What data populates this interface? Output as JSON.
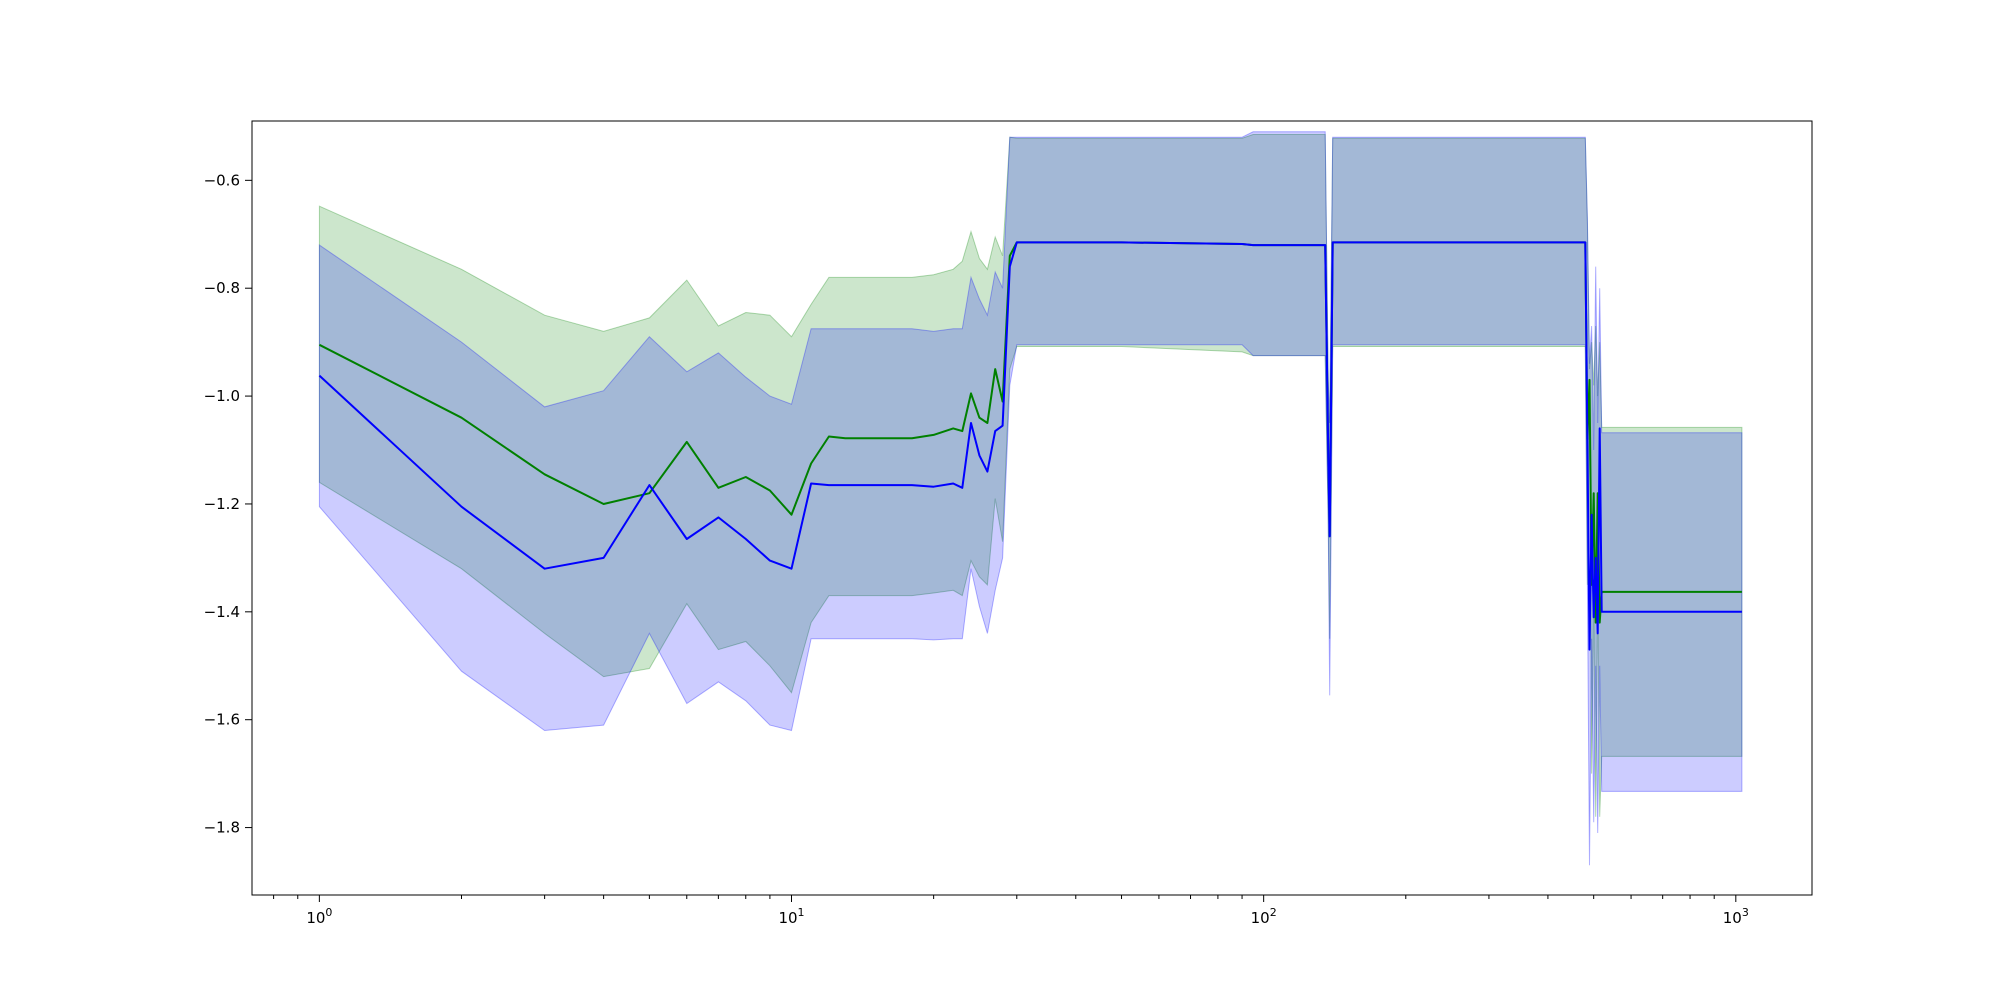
{
  "chart_data": {
    "type": "line",
    "xscale": "log",
    "xlim": [
      0.72,
      1450
    ],
    "ylim": [
      -1.925,
      -0.49
    ],
    "grid": false,
    "legend": "none",
    "x_ticks": [
      {
        "value": 1,
        "base": "10",
        "exp": "0"
      },
      {
        "value": 10,
        "base": "10",
        "exp": "1"
      },
      {
        "value": 100,
        "base": "10",
        "exp": "2"
      },
      {
        "value": 1000,
        "base": "10",
        "exp": "3"
      }
    ],
    "y_ticks": [
      {
        "value": -0.6,
        "label": "−0.6"
      },
      {
        "value": -0.8,
        "label": "−0.8"
      },
      {
        "value": -1.0,
        "label": "−1.0"
      },
      {
        "value": -1.2,
        "label": "−1.2"
      },
      {
        "value": -1.4,
        "label": "−1.4"
      },
      {
        "value": -1.6,
        "label": "−1.6"
      },
      {
        "value": -1.8,
        "label": "−1.8"
      }
    ],
    "series": [
      {
        "color": "#008000",
        "band_color": "#008000",
        "x": [
          1,
          2,
          3,
          4,
          5,
          6,
          7,
          8,
          9,
          10,
          11,
          12,
          13,
          18,
          20,
          22,
          23,
          24,
          25,
          26,
          27,
          28,
          29,
          30,
          50,
          90,
          95,
          135,
          137,
          138,
          140,
          200,
          480,
          485,
          490,
          495,
          500,
          505,
          510,
          515,
          520,
          1030
        ],
        "y": [
          -0.905,
          -1.04,
          -1.145,
          -1.2,
          -1.18,
          -1.085,
          -1.17,
          -1.15,
          -1.175,
          -1.22,
          -1.125,
          -1.075,
          -1.078,
          -1.078,
          -1.072,
          -1.06,
          -1.065,
          -0.995,
          -1.04,
          -1.05,
          -0.95,
          -1.01,
          -0.74,
          -0.715,
          -0.715,
          -0.718,
          -0.72,
          -0.72,
          -1.1,
          -1.26,
          -0.715,
          -0.715,
          -0.715,
          -1.08,
          -0.97,
          -1.35,
          -1.18,
          -1.42,
          -1.18,
          -1.42,
          -1.363,
          -1.363
        ],
        "upper": [
          -0.648,
          -0.765,
          -0.85,
          -0.88,
          -0.855,
          -0.785,
          -0.87,
          -0.845,
          -0.85,
          -0.89,
          -0.83,
          -0.78,
          -0.78,
          -0.78,
          -0.775,
          -0.765,
          -0.75,
          -0.695,
          -0.745,
          -0.765,
          -0.705,
          -0.74,
          -0.52,
          -0.522,
          -0.522,
          -0.522,
          -0.515,
          -0.515,
          -0.97,
          -1.05,
          -0.522,
          -0.522,
          -0.522,
          -0.68,
          -0.95,
          -0.9,
          -0.98,
          -0.87,
          -1.0,
          -0.9,
          -1.058,
          -1.058
        ],
        "lower": [
          -1.16,
          -1.32,
          -1.44,
          -1.52,
          -1.505,
          -1.385,
          -1.47,
          -1.455,
          -1.5,
          -1.55,
          -1.42,
          -1.37,
          -1.37,
          -1.37,
          -1.365,
          -1.36,
          -1.37,
          -1.305,
          -1.335,
          -1.35,
          -1.19,
          -1.27,
          -0.95,
          -0.908,
          -0.908,
          -0.918,
          -0.925,
          -0.925,
          -1.23,
          -1.45,
          -0.908,
          -0.908,
          -0.908,
          -1.35,
          -1.0,
          -1.7,
          -1.38,
          -1.78,
          -1.36,
          -1.78,
          -1.668,
          -1.668
        ]
      },
      {
        "color": "#0000ff",
        "band_color": "#0000ff",
        "x": [
          1,
          2,
          3,
          4,
          5,
          6,
          7,
          8,
          9,
          10,
          11,
          12,
          13,
          18,
          20,
          22,
          23,
          24,
          25,
          26,
          27,
          28,
          29,
          30,
          50,
          90,
          95,
          135,
          137,
          138,
          140,
          200,
          480,
          485,
          490,
          495,
          500,
          505,
          510,
          515,
          520,
          1030
        ],
        "y": [
          -0.962,
          -1.205,
          -1.32,
          -1.3,
          -1.165,
          -1.265,
          -1.225,
          -1.265,
          -1.305,
          -1.32,
          -1.162,
          -1.165,
          -1.165,
          -1.165,
          -1.168,
          -1.162,
          -1.17,
          -1.05,
          -1.11,
          -1.14,
          -1.065,
          -1.055,
          -0.76,
          -0.715,
          -0.715,
          -0.718,
          -0.72,
          -0.72,
          -1.1,
          -1.26,
          -0.715,
          -0.715,
          -0.715,
          -1.08,
          -1.47,
          -1.22,
          -1.41,
          -1.3,
          -1.44,
          -1.06,
          -1.4,
          -1.4
        ],
        "upper": [
          -0.72,
          -0.9,
          -1.02,
          -0.99,
          -0.89,
          -0.955,
          -0.92,
          -0.965,
          -1.0,
          -1.015,
          -0.875,
          -0.875,
          -0.875,
          -0.875,
          -0.88,
          -0.875,
          -0.875,
          -0.78,
          -0.82,
          -0.85,
          -0.77,
          -0.8,
          -0.52,
          -0.52,
          -0.52,
          -0.52,
          -0.51,
          -0.51,
          -0.97,
          -1.05,
          -0.52,
          -0.52,
          -0.52,
          -0.67,
          -0.94,
          -0.87,
          -1.1,
          -0.76,
          -1.05,
          -0.8,
          -1.068,
          -1.068
        ],
        "lower": [
          -1.205,
          -1.51,
          -1.62,
          -1.61,
          -1.44,
          -1.57,
          -1.53,
          -1.565,
          -1.61,
          -1.62,
          -1.45,
          -1.45,
          -1.45,
          -1.45,
          -1.452,
          -1.45,
          -1.45,
          -1.32,
          -1.39,
          -1.44,
          -1.36,
          -1.3,
          -0.98,
          -0.905,
          -0.905,
          -0.905,
          -0.925,
          -0.925,
          -1.23,
          -1.555,
          -0.905,
          -0.905,
          -0.905,
          -1.35,
          -1.87,
          -1.45,
          -1.79,
          -1.5,
          -1.81,
          -1.5,
          -1.733,
          -1.733
        ]
      }
    ]
  }
}
